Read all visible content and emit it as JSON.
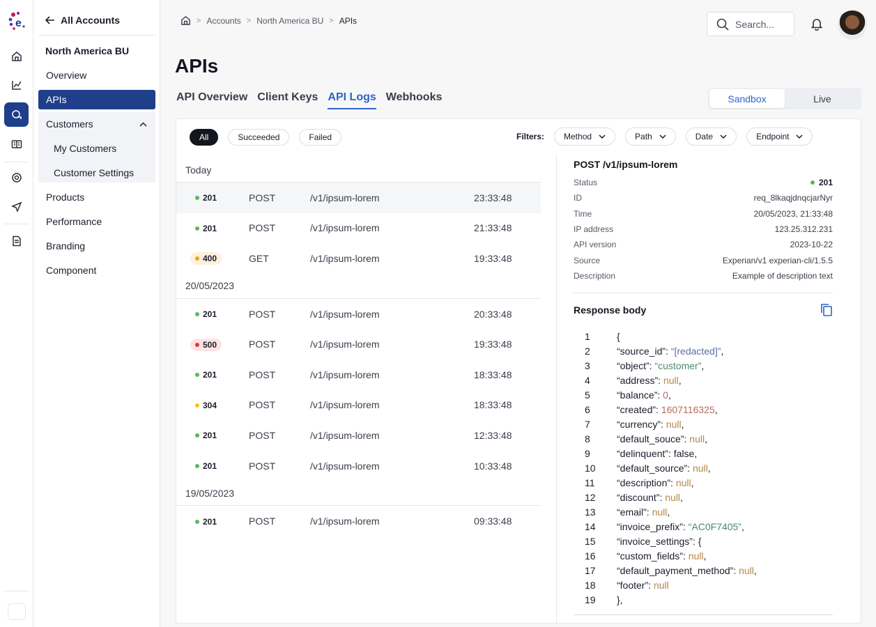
{
  "brand": {
    "accent": "#1f3f8a",
    "link": "#2f63c9"
  },
  "rail": {
    "icons": [
      "home-icon",
      "chart-icon",
      "chat-icon",
      "book-icon",
      "support-icon",
      "send-icon",
      "document-icon"
    ]
  },
  "nav": {
    "back_label": "All Accounts",
    "section": "North America BU",
    "items": {
      "overview": "Overview",
      "apis": "APIs",
      "customers": "Customers",
      "my_customers": "My Customers",
      "customer_settings": "Customer Settings",
      "products": "Products",
      "performance": "Performance",
      "branding": "Branding",
      "component": "Component"
    }
  },
  "breadcrumb": {
    "accounts": "Accounts",
    "bu": "North America BU",
    "current": "APIs"
  },
  "search": {
    "placeholder": "Search..."
  },
  "page_title": "APIs",
  "tabs": [
    "API Overview",
    "Client Keys",
    "API Logs",
    "Webhooks"
  ],
  "env": {
    "sandbox": "Sandbox",
    "live": "Live"
  },
  "chips": {
    "all": "All",
    "succeeded": "Succeeded",
    "failed": "Failed"
  },
  "filters": {
    "label": "Filters:",
    "method": "Method",
    "path": "Path",
    "date": "Date",
    "endpoint": "Endpoint"
  },
  "log_groups": [
    {
      "title": "Today",
      "rows": [
        {
          "code": "201",
          "method": "POST",
          "path": "/v1/ipsum-lorem",
          "time": "23:33:48"
        },
        {
          "code": "201",
          "method": "POST",
          "path": "/v1/ipsum-lorem",
          "time": "21:33:48"
        },
        {
          "code": "400",
          "method": "GET",
          "path": "/v1/ipsum-lorem",
          "time": "19:33:48"
        }
      ]
    },
    {
      "title": "20/05/2023",
      "rows": [
        {
          "code": "201",
          "method": "POST",
          "path": "/v1/ipsum-lorem",
          "time": "20:33:48"
        },
        {
          "code": "500",
          "method": "POST",
          "path": "/v1/ipsum-lorem",
          "time": "19:33:48"
        },
        {
          "code": "201",
          "method": "POST",
          "path": "/v1/ipsum-lorem",
          "time": "18:33:48"
        },
        {
          "code": "304",
          "method": "POST",
          "path": "/v1/ipsum-lorem",
          "time": "18:33:48"
        },
        {
          "code": "201",
          "method": "POST",
          "path": "/v1/ipsum-lorem",
          "time": "12:33:48"
        },
        {
          "code": "201",
          "method": "POST",
          "path": "/v1/ipsum-lorem",
          "time": "10:33:48"
        }
      ]
    },
    {
      "title": "19/05/2023",
      "rows": [
        {
          "code": "201",
          "method": "POST",
          "path": "/v1/ipsum-lorem",
          "time": "09:33:48"
        }
      ]
    }
  ],
  "status_colors": {
    "201": "#5cb85c",
    "400": "#f0a020",
    "500": "#e53935",
    "304": "#f5c518"
  },
  "detail": {
    "title": "POST /v1/ipsum-lorem",
    "fields": [
      {
        "k": "Status",
        "v": "201"
      },
      {
        "k": "ID",
        "v": "req_8lkaqjdnqcjarNyr"
      },
      {
        "k": "Time",
        "v": "20/05/2023, 21:33:48"
      },
      {
        "k": "IP address",
        "v": "123.25.312.231"
      },
      {
        "k": "API version",
        "v": "2023-10-22"
      },
      {
        "k": "Source",
        "v": "Experian/v1 experian-cli/1.5.5"
      },
      {
        "k": "Description",
        "v": "Example of description text"
      }
    ],
    "response_label": "Response body",
    "code": [
      {
        "n": "1",
        "parts": [
          [
            "",
            "{"
          ]
        ]
      },
      {
        "n": "2",
        "parts": [
          [
            "",
            "“source_id”: "
          ],
          [
            "str",
            "“[redacted]”"
          ],
          [
            "",
            ","
          ]
        ]
      },
      {
        "n": "3",
        "parts": [
          [
            "",
            "“object”: "
          ],
          [
            "green",
            "“customer”"
          ],
          [
            "",
            ","
          ]
        ]
      },
      {
        "n": "4",
        "parts": [
          [
            "",
            "“address”: "
          ],
          [
            "null",
            "null"
          ],
          [
            "",
            ","
          ]
        ]
      },
      {
        "n": "5",
        "parts": [
          [
            "",
            "“balance”: "
          ],
          [
            "num",
            "0"
          ],
          [
            "",
            ","
          ]
        ]
      },
      {
        "n": "6",
        "parts": [
          [
            "",
            "“created”: "
          ],
          [
            "num",
            "1607116325"
          ],
          [
            "",
            ","
          ]
        ]
      },
      {
        "n": "7",
        "parts": [
          [
            "",
            "“currency”: "
          ],
          [
            "null",
            "null"
          ],
          [
            "",
            ","
          ]
        ]
      },
      {
        "n": "8",
        "parts": [
          [
            "",
            "“default_souce”: "
          ],
          [
            "null",
            "null"
          ],
          [
            "",
            ","
          ]
        ]
      },
      {
        "n": "9",
        "parts": [
          [
            "",
            "“delinquent”: false,"
          ]
        ]
      },
      {
        "n": "10",
        "parts": [
          [
            "",
            "“default_source”: "
          ],
          [
            "null",
            "null"
          ],
          [
            "",
            ","
          ]
        ]
      },
      {
        "n": "11",
        "parts": [
          [
            "",
            "“description”: "
          ],
          [
            "null",
            "null"
          ],
          [
            "",
            ","
          ]
        ]
      },
      {
        "n": "12",
        "parts": [
          [
            "",
            "“discount”: "
          ],
          [
            "null",
            "null"
          ],
          [
            "",
            ","
          ]
        ]
      },
      {
        "n": "13",
        "parts": [
          [
            "",
            "“email”: "
          ],
          [
            "null",
            "null"
          ],
          [
            "",
            ","
          ]
        ]
      },
      {
        "n": "14",
        "parts": [
          [
            "",
            "“invoice_prefix”: "
          ],
          [
            "green",
            "“AC0F7405”"
          ],
          [
            "",
            ","
          ]
        ]
      },
      {
        "n": "15",
        "parts": [
          [
            "",
            "“invoice_settings”: {"
          ]
        ]
      },
      {
        "n": "16",
        "parts": [
          [
            "",
            "“custom_fields”: "
          ],
          [
            "null",
            "null"
          ],
          [
            "",
            ","
          ]
        ]
      },
      {
        "n": "17",
        "parts": [
          [
            "",
            "“default_payment_method”: "
          ],
          [
            "null",
            "null"
          ],
          [
            "",
            ","
          ]
        ]
      },
      {
        "n": "18",
        "parts": [
          [
            "",
            "“footer”: "
          ],
          [
            "null",
            "null"
          ]
        ]
      },
      {
        "n": "19",
        "parts": [
          [
            "",
            "},"
          ]
        ]
      }
    ]
  }
}
